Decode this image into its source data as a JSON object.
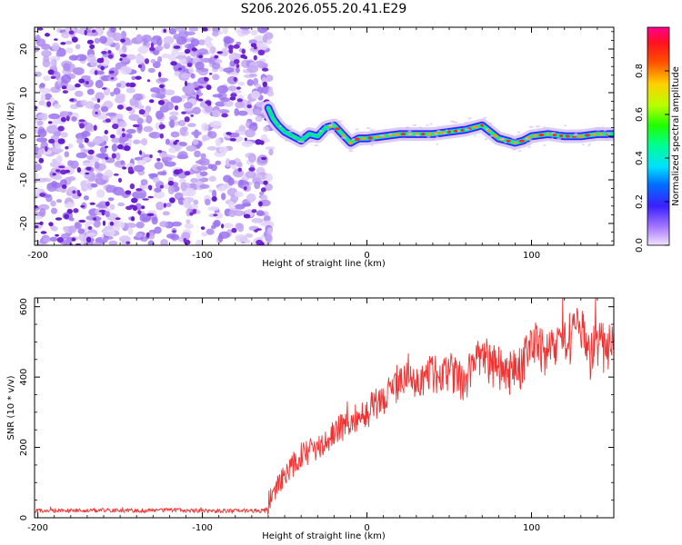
{
  "chart_data": [
    {
      "type": "heatmap",
      "title": "S206.2026.055.20.41.E29",
      "xlabel": "Height of straight line (km)",
      "ylabel": "Frequency (Hz)",
      "xlim": [
        -202,
        150
      ],
      "ylim": [
        -25,
        25
      ],
      "xticks": [
        -200,
        -100,
        0,
        100
      ],
      "yticks": [
        -20,
        -10,
        0,
        10,
        20
      ],
      "noise_region_x": [
        -202,
        -60
      ],
      "ridge": {
        "x": [
          -60,
          -57,
          -54,
          -50,
          -45,
          -40,
          -35,
          -30,
          -25,
          -20,
          -15,
          -10,
          -5,
          0,
          10,
          20,
          30,
          40,
          50,
          60,
          65,
          70,
          75,
          80,
          85,
          90,
          95,
          100,
          110,
          120,
          130,
          140,
          150
        ],
        "frequency": [
          6.5,
          4,
          2.5,
          1,
          0,
          -1,
          0.5,
          0,
          2,
          2.5,
          0.5,
          -1.5,
          -0.5,
          -0.5,
          0,
          0.5,
          0.5,
          0.5,
          1,
          1.5,
          2,
          2.5,
          1,
          -0.5,
          -1,
          -1.5,
          -1,
          0,
          0.5,
          0,
          0,
          0.5,
          0.5
        ]
      },
      "colorbar": {
        "label": "Normalized spectral amplitude",
        "range": [
          0.0,
          1.0
        ],
        "ticks": [
          0.0,
          0.2,
          0.4,
          0.6,
          0.8
        ]
      }
    },
    {
      "type": "line",
      "title": "",
      "xlabel": "Height of straight line (km)",
      "ylabel": "SNR (10 * v/v)",
      "xlim": [
        -202,
        150
      ],
      "ylim": [
        0,
        625
      ],
      "xticks": [
        -200,
        -100,
        0,
        100
      ],
      "yticks": [
        0,
        200,
        400,
        600
      ],
      "color": "#ee3333",
      "series": [
        {
          "name": "SNR",
          "x": [
            -202,
            -180,
            -160,
            -140,
            -120,
            -100,
            -80,
            -62,
            -60,
            -55,
            -50,
            -45,
            -40,
            -35,
            -30,
            -25,
            -20,
            -15,
            -10,
            -5,
            0,
            5,
            10,
            15,
            20,
            25,
            30,
            35,
            40,
            45,
            50,
            55,
            60,
            65,
            70,
            75,
            80,
            85,
            90,
            95,
            100,
            105,
            110,
            115,
            120,
            125,
            130,
            135,
            140,
            145,
            150
          ],
          "values": [
            20,
            20,
            22,
            20,
            22,
            20,
            20,
            20,
            40,
            80,
            120,
            150,
            180,
            190,
            200,
            220,
            240,
            260,
            270,
            290,
            300,
            320,
            340,
            360,
            380,
            400,
            390,
            400,
            410,
            400,
            420,
            400,
            380,
            460,
            450,
            430,
            430,
            400,
            420,
            430,
            520,
            480,
            470,
            490,
            500,
            520,
            530,
            460,
            500,
            480,
            480
          ]
        }
      ]
    }
  ]
}
